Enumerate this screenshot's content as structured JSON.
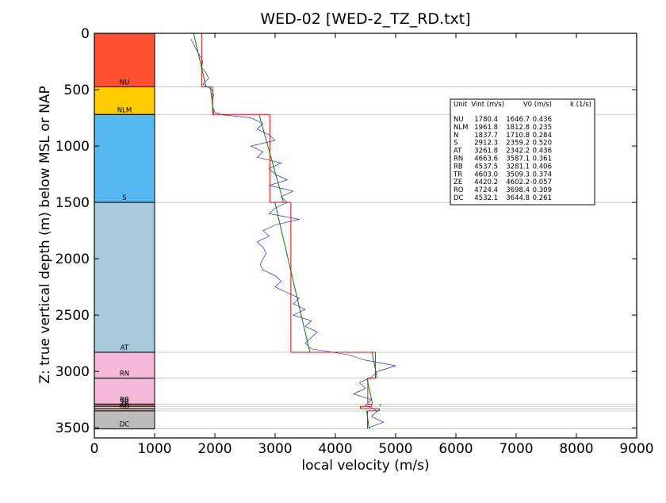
{
  "chart_data": {
    "type": "well-log",
    "title": "WED-02 [WED-2_TZ_RD.txt]",
    "x_label": "local velocity (m/s)",
    "y_label": "Z: true vertical depth (m) below MSL or NAP",
    "xlim": [
      0,
      9000
    ],
    "xticks": [
      0,
      1000,
      2000,
      3000,
      4000,
      5000,
      6000,
      7000,
      8000,
      9000
    ],
    "ylim": [
      0,
      3590
    ],
    "y_inverted": true,
    "yticks": [
      0,
      500,
      1000,
      1500,
      2000,
      2500,
      3000,
      3500
    ],
    "column_right": 1000,
    "log": {
      "color": "#0000ff",
      "depth": [
        50,
        100,
        150,
        200,
        250,
        300,
        350,
        400,
        450,
        500,
        550,
        600,
        650,
        700,
        720,
        750,
        800,
        850,
        900,
        950,
        1000,
        1050,
        1100,
        1150,
        1200,
        1250,
        1300,
        1350,
        1400,
        1450,
        1500,
        1550,
        1600,
        1650,
        1700,
        1750,
        1800,
        1850,
        1900,
        1950,
        2000,
        2050,
        2100,
        2150,
        2200,
        2250,
        2300,
        2350,
        2400,
        2450,
        2500,
        2550,
        2600,
        2650,
        2700,
        2750,
        2800,
        2850,
        2900,
        2950,
        3000,
        3050,
        3100,
        3150,
        3200,
        3250,
        3300,
        3350,
        3400,
        3450,
        3500
      ],
      "values": [
        1600,
        1650,
        1700,
        1750,
        1800,
        1780,
        1850,
        1900,
        1800,
        1950,
        1980,
        1950,
        1960,
        2000,
        2100,
        2600,
        2800,
        2700,
        2900,
        3000,
        2600,
        2800,
        2700,
        3100,
        2900,
        3000,
        3200,
        2900,
        3300,
        3100,
        3200,
        3000,
        2900,
        3400,
        3000,
        2800,
        2900,
        2700,
        2800,
        2850,
        2800,
        2750,
        2800,
        3000,
        3100,
        3000,
        3200,
        3400,
        3300,
        3500,
        3300,
        3600,
        3500,
        3700,
        3600,
        3500,
        3600,
        4200,
        4500,
        5000,
        4700,
        4600,
        4400,
        4500,
        4300,
        4600,
        4500,
        4700,
        4600,
        4800,
        4550
      ]
    },
    "interval_color": "#ff0000",
    "trend_color": "#008000",
    "layers": [
      {
        "name": "NU",
        "top": 0,
        "bottom": 475,
        "color": "#ff5030"
      },
      {
        "name": "NLM",
        "top": 475,
        "bottom": 720,
        "color": "#ffcc00"
      },
      {
        "name": "S",
        "top": 720,
        "bottom": 1500,
        "color": "#55b8f0"
      },
      {
        "name": "AT",
        "top": 1500,
        "bottom": 2830,
        "color": "#a8c8dc"
      },
      {
        "name": "RN",
        "top": 2830,
        "bottom": 3060,
        "color": "#f4b8d8"
      },
      {
        "name": "RB",
        "top": 3060,
        "bottom": 3290,
        "color": "#f4b8d8"
      },
      {
        "name": "TR",
        "top": 3290,
        "bottom": 3310,
        "color": "#c09080"
      },
      {
        "name": "ZE",
        "top": 3310,
        "bottom": 3330,
        "color": "#e8d0e0"
      },
      {
        "name": "RO",
        "top": 3330,
        "bottom": 3350,
        "color": "#d8c0a8"
      },
      {
        "name": "DC",
        "top": 3350,
        "bottom": 3510,
        "color": "#bbbbbb"
      }
    ],
    "table": {
      "header": [
        "Unit",
        "Vint (m/s)",
        "V0 (m/s)",
        "k (1/s)"
      ],
      "rows": [
        [
          "NU",
          "1780.4",
          "1646.7",
          "0.436"
        ],
        [
          "NLM",
          "1961.8",
          "1812.8",
          "0.235"
        ],
        [
          "N",
          "1837.7",
          "1710.8",
          "0.284"
        ],
        [
          "S",
          "2912.3",
          "2359.2",
          "0.520"
        ],
        [
          "AT",
          "3261.8",
          "2342.2",
          "0.436"
        ],
        [
          "RN",
          "4663.6",
          "3587.1",
          "0.361"
        ],
        [
          "RB",
          "4537.5",
          "3281.1",
          "0.406"
        ],
        [
          "TR",
          "4603.0",
          "3509.3",
          "0.374"
        ],
        [
          "ZE",
          "4420.2",
          "4602.2",
          "-0.057"
        ],
        [
          "RO",
          "4724.4",
          "3698.4",
          "0.309"
        ],
        [
          "DC",
          "4532.1",
          "3644.8",
          "0.261"
        ]
      ]
    }
  }
}
